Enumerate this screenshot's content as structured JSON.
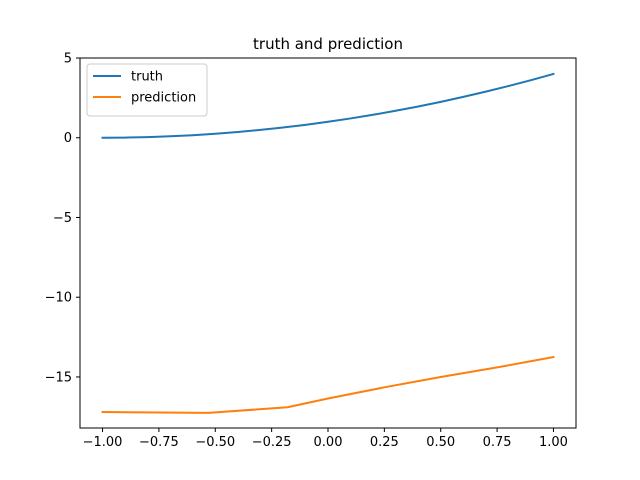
{
  "chart_data": {
    "type": "line",
    "title": "truth and prediction",
    "xlabel": "",
    "ylabel": "",
    "xlim": [
      -1.1,
      1.1
    ],
    "ylim": [
      -18.2,
      5.0
    ],
    "xticks": [
      -1.0,
      -0.75,
      -0.5,
      -0.25,
      0.0,
      0.25,
      0.5,
      0.75,
      1.0
    ],
    "xtick_labels": [
      "−1.00",
      "−0.75",
      "−0.50",
      "−0.25",
      "0.00",
      "0.25",
      "0.50",
      "0.75",
      "1.00"
    ],
    "yticks": [
      5,
      0,
      -5,
      -10,
      -15
    ],
    "ytick_labels": [
      "5",
      "0",
      "−5",
      "−10",
      "−15"
    ],
    "grid": false,
    "legend": {
      "placement": "upper-left"
    },
    "series": [
      {
        "name": "truth",
        "color": "#1f77b4",
        "x": [
          -1.0,
          -0.9,
          -0.8,
          -0.7,
          -0.6,
          -0.5,
          -0.4,
          -0.3,
          -0.2,
          -0.1,
          0.0,
          0.1,
          0.2,
          0.3,
          0.4,
          0.5,
          0.6,
          0.7,
          0.8,
          0.9,
          1.0
        ],
        "y": [
          0.0,
          0.01,
          0.04,
          0.09,
          0.16,
          0.25,
          0.36,
          0.49,
          0.64,
          0.81,
          1.0,
          1.21,
          1.44,
          1.69,
          1.96,
          2.25,
          2.56,
          2.89,
          3.24,
          3.61,
          4.0
        ]
      },
      {
        "name": "prediction",
        "color": "#ff7f0e",
        "x": [
          -1.0,
          -0.53,
          -0.18,
          0.0,
          0.25,
          0.5,
          0.75,
          1.0
        ],
        "y": [
          -17.2,
          -17.25,
          -16.9,
          -16.35,
          -15.65,
          -15.0,
          -14.4,
          -13.75
        ]
      }
    ]
  }
}
